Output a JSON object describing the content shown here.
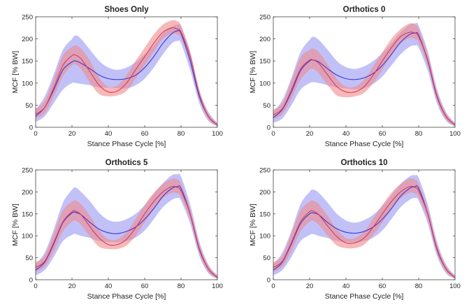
{
  "colors": {
    "blue_line": "#3a3ad8",
    "blue_band": "#8e8ef2",
    "red_line": "#d83a5a",
    "red_band": "#f08a8a"
  },
  "chart_data": [
    {
      "type": "line",
      "title": "Shoes Only",
      "xlabel": "Stance Phase Cycle [%]",
      "ylabel": "MCF [% BW]",
      "xlim": [
        0,
        100
      ],
      "ylim": [
        0,
        250
      ],
      "xticks": [
        "0",
        "20",
        "40",
        "60",
        "80",
        "100"
      ],
      "yticks": [
        "0",
        "50",
        "100",
        "150",
        "200",
        "250"
      ],
      "grid": false,
      "x": [
        0,
        5,
        10,
        15,
        20,
        22,
        25,
        30,
        35,
        40,
        45,
        50,
        55,
        60,
        65,
        70,
        75,
        78,
        80,
        85,
        90,
        95,
        100
      ],
      "series": [
        {
          "color_key": "blue",
          "style": "mean with shaded band",
          "mean": [
            25,
            45,
            85,
            130,
            148,
            150,
            145,
            132,
            118,
            110,
            108,
            110,
            118,
            135,
            160,
            190,
            212,
            218,
            212,
            150,
            70,
            25,
            5
          ],
          "lower": [
            12,
            25,
            55,
            85,
            100,
            100,
            98,
            95,
            90,
            90,
            88,
            88,
            95,
            110,
            135,
            165,
            190,
            195,
            190,
            130,
            55,
            15,
            2
          ],
          "upper": [
            40,
            70,
            120,
            175,
            200,
            208,
            200,
            175,
            150,
            135,
            130,
            135,
            148,
            165,
            185,
            212,
            228,
            232,
            228,
            170,
            85,
            35,
            10
          ]
        },
        {
          "color_key": "red",
          "style": "mean with shaded band",
          "mean": [
            30,
            45,
            90,
            140,
            162,
            163,
            155,
            125,
            95,
            80,
            82,
            100,
            130,
            160,
            190,
            215,
            225,
            222,
            215,
            160,
            75,
            25,
            5
          ],
          "lower": [
            20,
            32,
            70,
            115,
            140,
            142,
            132,
            100,
            75,
            70,
            72,
            82,
            110,
            140,
            170,
            200,
            212,
            210,
            202,
            148,
            65,
            18,
            3
          ],
          "upper": [
            42,
            60,
            110,
            162,
            182,
            185,
            178,
            150,
            112,
            92,
            95,
            118,
            150,
            180,
            210,
            232,
            242,
            240,
            230,
            172,
            85,
            32,
            8
          ]
        }
      ]
    },
    {
      "type": "line",
      "title": "Orthotics 0",
      "xlabel": "Stance Phase Cycle [%]",
      "ylabel": "MCF [% BW]",
      "xlim": [
        0,
        100
      ],
      "ylim": [
        0,
        250
      ],
      "xticks": [
        "0",
        "20",
        "40",
        "60",
        "80",
        "100"
      ],
      "yticks": [
        "0",
        "50",
        "100",
        "150",
        "200",
        "250"
      ],
      "grid": false,
      "x": [
        0,
        5,
        10,
        15,
        20,
        22,
        25,
        30,
        35,
        40,
        45,
        50,
        55,
        60,
        65,
        70,
        75,
        78,
        80,
        85,
        90,
        95,
        100
      ],
      "series": [
        {
          "color_key": "blue",
          "style": "mean with shaded band",
          "mean": [
            22,
            40,
            80,
            128,
            150,
            152,
            148,
            132,
            118,
            110,
            108,
            112,
            122,
            140,
            165,
            192,
            210,
            213,
            208,
            150,
            70,
            25,
            5
          ],
          "lower": [
            10,
            20,
            50,
            85,
            100,
            102,
            100,
            95,
            90,
            88,
            86,
            88,
            98,
            115,
            140,
            165,
            182,
            185,
            180,
            128,
            55,
            15,
            2
          ],
          "upper": [
            35,
            62,
            112,
            170,
            198,
            205,
            198,
            175,
            150,
            136,
            132,
            138,
            150,
            168,
            190,
            215,
            232,
            235,
            230,
            172,
            88,
            35,
            10
          ]
        },
        {
          "color_key": "red",
          "style": "mean with shaded band",
          "mean": [
            28,
            42,
            85,
            132,
            152,
            152,
            145,
            118,
            92,
            80,
            80,
            92,
            118,
            150,
            180,
            205,
            215,
            213,
            205,
            152,
            72,
            25,
            5
          ],
          "lower": [
            18,
            30,
            65,
            108,
            130,
            132,
            122,
            95,
            72,
            68,
            70,
            78,
            100,
            130,
            162,
            190,
            202,
            200,
            192,
            140,
            62,
            18,
            3
          ],
          "upper": [
            40,
            55,
            105,
            158,
            175,
            178,
            170,
            142,
            110,
            92,
            92,
            108,
            138,
            170,
            200,
            222,
            235,
            232,
            222,
            165,
            82,
            32,
            8
          ]
        }
      ]
    },
    {
      "type": "line",
      "title": "Orthotics 5",
      "xlabel": "Stance Phase Cycle [%]",
      "ylabel": "MCF [% BW]",
      "xlim": [
        0,
        100
      ],
      "ylim": [
        0,
        250
      ],
      "xticks": [
        "0",
        "20",
        "40",
        "60",
        "80",
        "100"
      ],
      "yticks": [
        "0",
        "50",
        "100",
        "150",
        "200",
        "250"
      ],
      "grid": false,
      "x": [
        0,
        5,
        10,
        15,
        20,
        22,
        25,
        30,
        35,
        40,
        45,
        50,
        55,
        60,
        65,
        70,
        75,
        78,
        80,
        85,
        90,
        95,
        100
      ],
      "series": [
        {
          "color_key": "blue",
          "style": "mean with shaded band",
          "mean": [
            22,
            40,
            82,
            130,
            152,
            153,
            148,
            130,
            115,
            107,
            105,
            110,
            120,
            138,
            162,
            190,
            208,
            212,
            208,
            150,
            70,
            25,
            5
          ],
          "lower": [
            10,
            22,
            52,
            88,
            102,
            104,
            100,
            95,
            88,
            86,
            85,
            88,
            96,
            112,
            138,
            165,
            182,
            186,
            180,
            128,
            55,
            15,
            2
          ],
          "upper": [
            35,
            62,
            115,
            175,
            205,
            210,
            200,
            178,
            152,
            136,
            132,
            138,
            150,
            170,
            195,
            220,
            238,
            240,
            235,
            172,
            88,
            35,
            10
          ]
        },
        {
          "color_key": "red",
          "style": "mean with shaded band",
          "mean": [
            28,
            42,
            85,
            132,
            155,
            156,
            148,
            120,
            95,
            80,
            80,
            92,
            118,
            150,
            178,
            200,
            212,
            210,
            202,
            150,
            72,
            25,
            5
          ],
          "lower": [
            18,
            30,
            65,
            110,
            132,
            134,
            125,
            98,
            75,
            70,
            70,
            78,
            100,
            130,
            160,
            185,
            198,
            196,
            188,
            138,
            62,
            18,
            3
          ],
          "upper": [
            40,
            55,
            105,
            158,
            178,
            180,
            172,
            145,
            112,
            92,
            92,
            108,
            138,
            170,
            198,
            218,
            230,
            228,
            218,
            162,
            82,
            32,
            8
          ]
        }
      ]
    },
    {
      "type": "line",
      "title": "Orthotics 10",
      "xlabel": "Stance Phase Cycle [%]",
      "ylabel": "MCF [% BW]",
      "xlim": [
        0,
        100
      ],
      "ylim": [
        0,
        250
      ],
      "xticks": [
        "0",
        "20",
        "40",
        "60",
        "80",
        "100"
      ],
      "yticks": [
        "0",
        "50",
        "100",
        "150",
        "200",
        "250"
      ],
      "grid": false,
      "x": [
        0,
        5,
        10,
        15,
        20,
        22,
        25,
        30,
        35,
        40,
        45,
        50,
        55,
        60,
        65,
        70,
        75,
        78,
        80,
        85,
        90,
        95,
        100
      ],
      "series": [
        {
          "color_key": "blue",
          "style": "mean with shaded band",
          "mean": [
            22,
            40,
            82,
            128,
            150,
            152,
            148,
            130,
            116,
            108,
            106,
            110,
            120,
            138,
            162,
            190,
            208,
            212,
            208,
            150,
            70,
            25,
            5
          ],
          "lower": [
            10,
            22,
            52,
            88,
            102,
            104,
            100,
            95,
            88,
            86,
            85,
            88,
            96,
            112,
            138,
            165,
            182,
            186,
            180,
            128,
            55,
            15,
            2
          ],
          "upper": [
            35,
            62,
            112,
            172,
            200,
            205,
            198,
            175,
            150,
            135,
            130,
            136,
            148,
            168,
            192,
            218,
            235,
            238,
            232,
            172,
            88,
            35,
            10
          ]
        },
        {
          "color_key": "red",
          "style": "mean with shaded band",
          "mean": [
            28,
            42,
            85,
            132,
            155,
            156,
            148,
            122,
            98,
            84,
            84,
            95,
            120,
            150,
            178,
            200,
            212,
            210,
            202,
            150,
            72,
            25,
            5
          ],
          "lower": [
            18,
            30,
            65,
            110,
            132,
            134,
            125,
            100,
            78,
            72,
            72,
            80,
            102,
            130,
            160,
            185,
            198,
            196,
            188,
            138,
            62,
            18,
            3
          ],
          "upper": [
            40,
            55,
            105,
            158,
            178,
            180,
            172,
            145,
            115,
            95,
            95,
            110,
            140,
            170,
            198,
            218,
            230,
            228,
            218,
            162,
            82,
            32,
            8
          ]
        }
      ]
    }
  ]
}
